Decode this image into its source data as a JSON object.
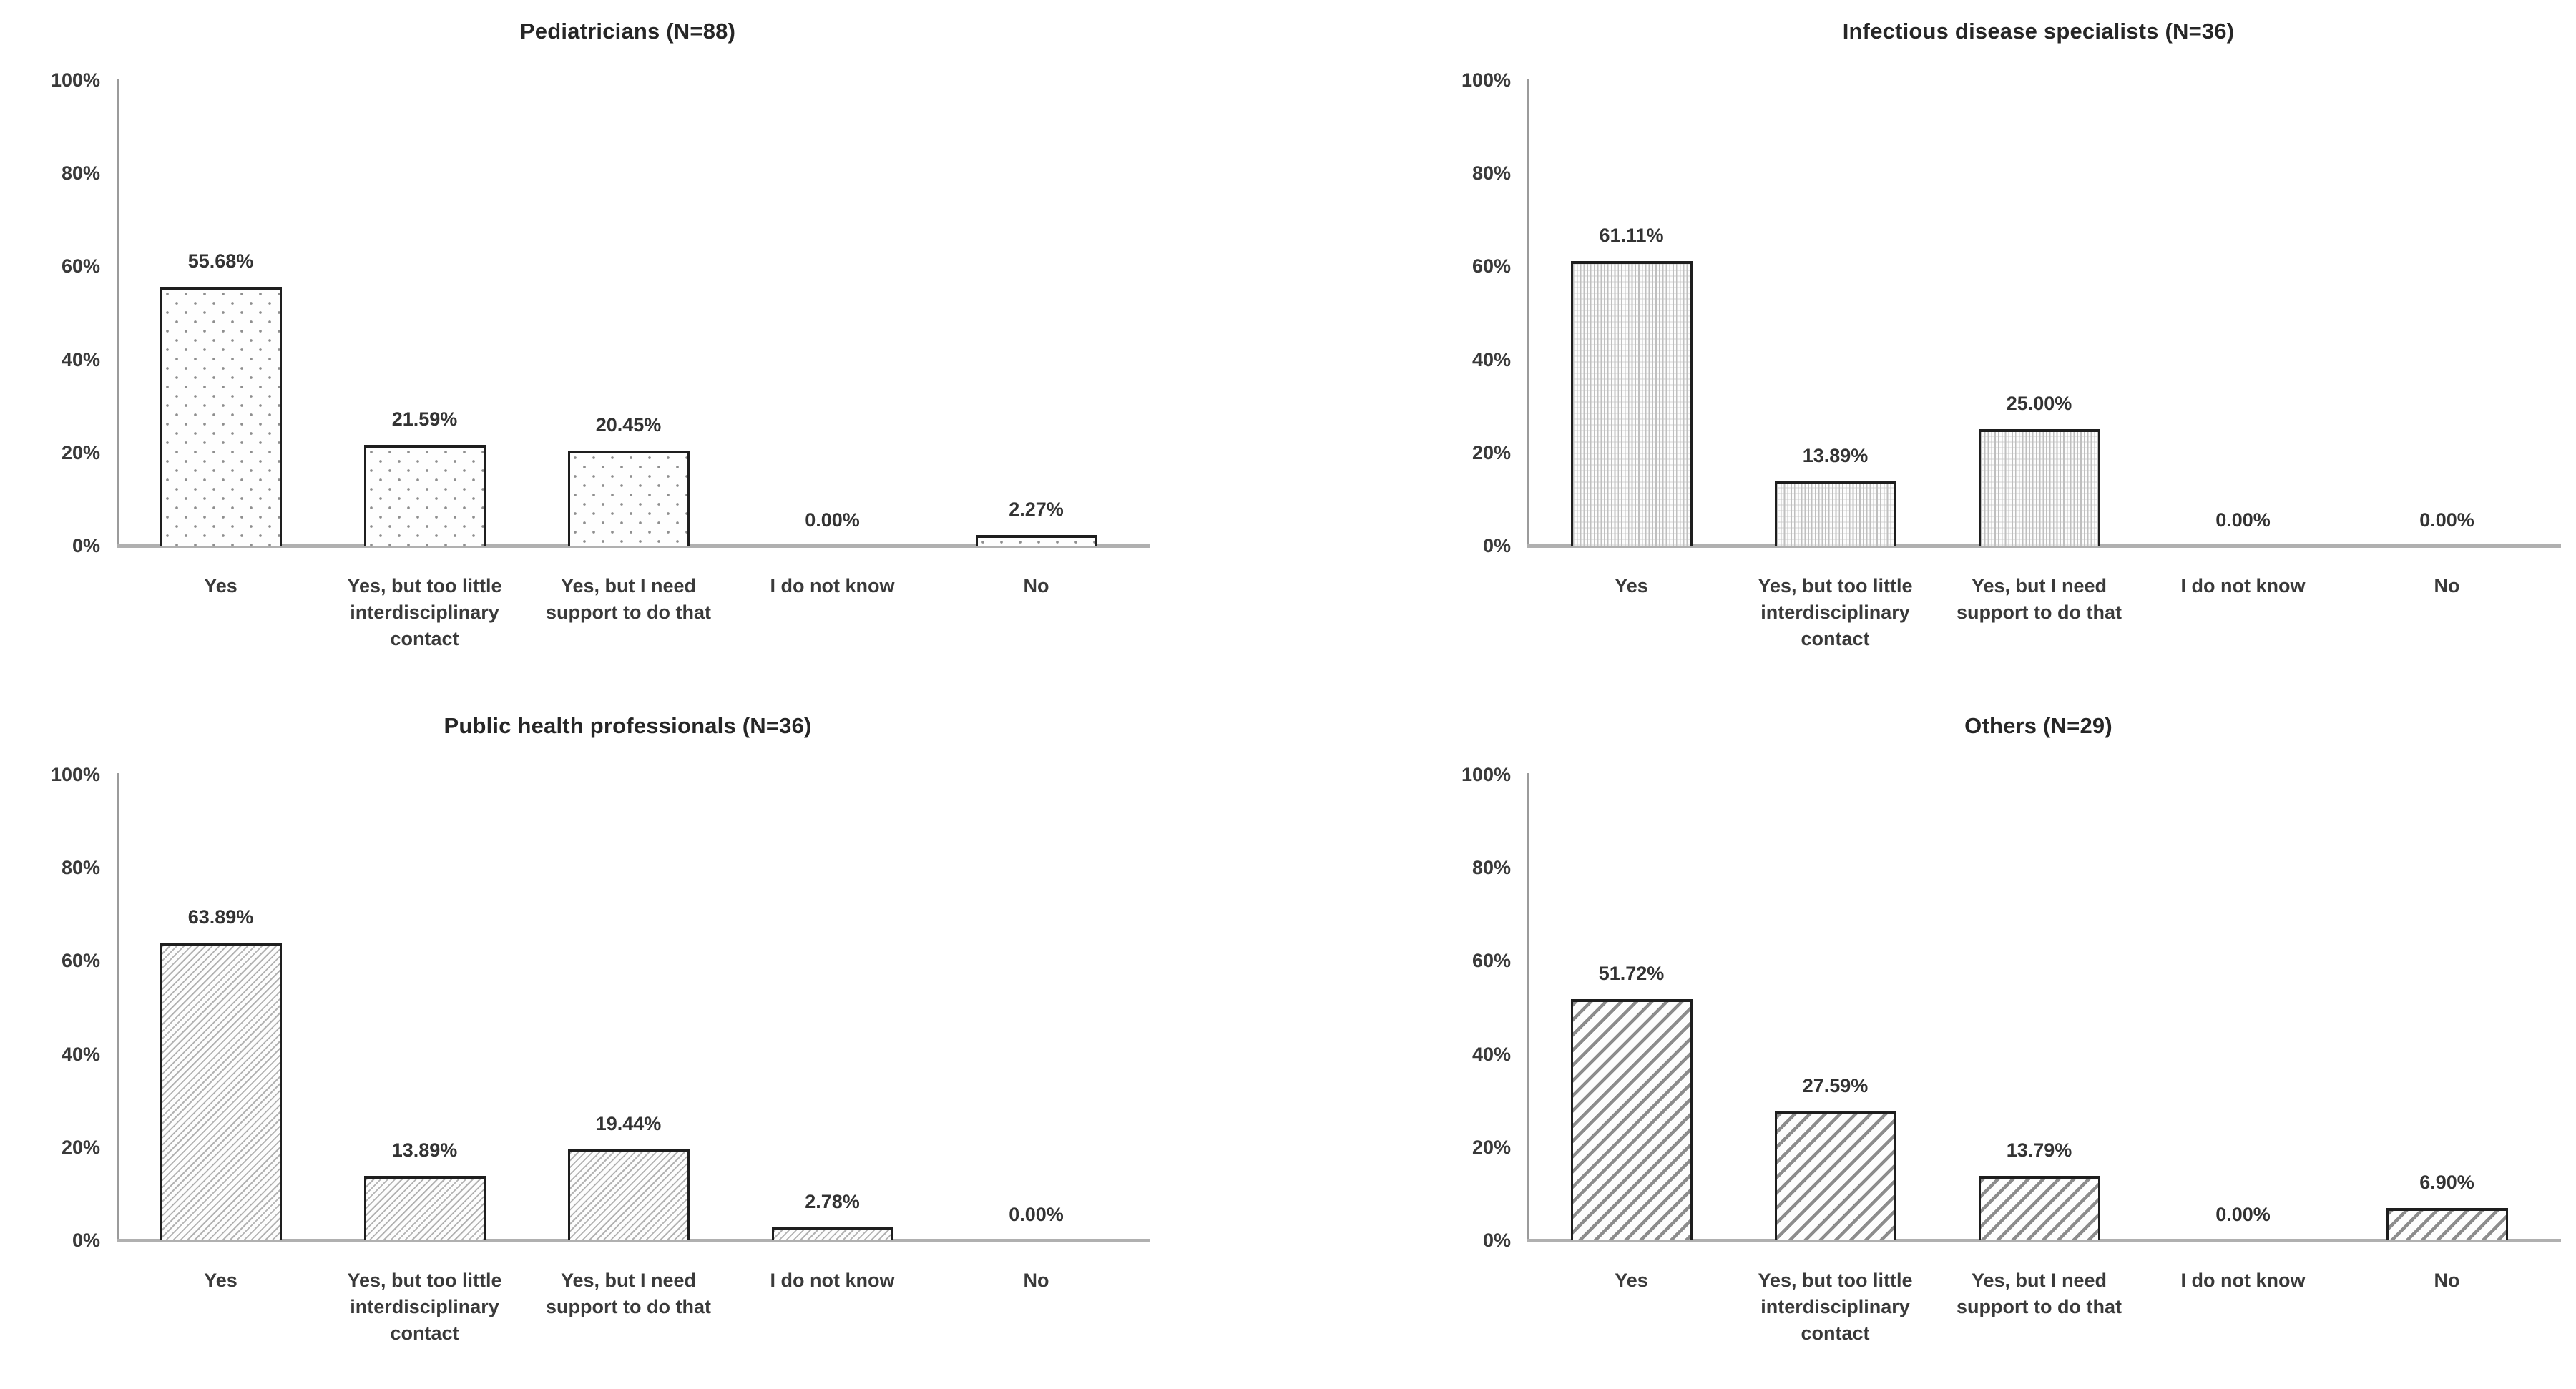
{
  "figure": {
    "background": "#ffffff",
    "description": "Four bar charts of survey responses by professional group"
  },
  "palette": {
    "bar_border": "#1e1e1e",
    "y_axis_line": "#9b9b9b",
    "x_axis_line": "#b0b0b0",
    "title_text": "#262626",
    "label_text": "#3a3a3a",
    "value_text": "#333333",
    "dot_pattern_gray": "#8f8f8f",
    "vline_pattern_gray": "#bfbfbf",
    "fine_hatch_gray": "#b2b2b2",
    "bold_hatch_gray": "#8c8c8c"
  },
  "chart_data": [
    {
      "type": "bar",
      "title": "Pediatricians (N=88)",
      "categories": [
        "Yes",
        "Yes, but too little interdisciplinary contact",
        "Yes, but I need support to do that",
        "I do not know",
        "No"
      ],
      "values": [
        55.68,
        21.59,
        20.45,
        0.0,
        2.27
      ],
      "value_labels": [
        "55.68%",
        "21.59%",
        "20.45%",
        "0.00%",
        "2.27%"
      ],
      "y_ticks": [
        "100%",
        "80%",
        "60%",
        "40%",
        "20%",
        "0%"
      ],
      "ylim": [
        0,
        100
      ],
      "xlabel": "",
      "ylabel": "",
      "grid": false,
      "legend": null,
      "pattern": "dots",
      "pattern_description": "white fill with sparse gray polka dots, black outline"
    },
    {
      "type": "bar",
      "title": "Infectious disease specialists (N=36)",
      "categories": [
        "Yes",
        "Yes, but too little interdisciplinary contact",
        "Yes, but I need support to do that",
        "I do not know",
        "No"
      ],
      "values": [
        61.11,
        13.89,
        25.0,
        0.0,
        0.0
      ],
      "value_labels": [
        "61.11%",
        "13.89%",
        "25.00%",
        "0.00%",
        "0.00%"
      ],
      "y_ticks": [
        "100%",
        "80%",
        "60%",
        "40%",
        "20%",
        "0%"
      ],
      "ylim": [
        0,
        100
      ],
      "xlabel": "",
      "ylabel": "",
      "grid": false,
      "legend": null,
      "pattern": "vertical-lines",
      "pattern_description": "dense fine vertical gray lines, black outline"
    },
    {
      "type": "bar",
      "title": "Public health professionals (N=36)",
      "categories": [
        "Yes",
        "Yes, but too little interdisciplinary contact",
        "Yes, but I need support to do that",
        "I do not know",
        "No"
      ],
      "values": [
        63.89,
        13.89,
        19.44,
        2.78,
        0.0
      ],
      "value_labels": [
        "63.89%",
        "13.89%",
        "19.44%",
        "2.78%",
        "0.00%"
      ],
      "y_ticks": [
        "100%",
        "80%",
        "60%",
        "40%",
        "20%",
        "0%"
      ],
      "ylim": [
        0,
        100
      ],
      "xlabel": "",
      "ylabel": "",
      "grid": false,
      "legend": null,
      "pattern": "diagonal-fine",
      "pattern_description": "thin light-gray upward diagonal hatching, black outline"
    },
    {
      "type": "bar",
      "title": "Others (N=29)",
      "categories": [
        "Yes",
        "Yes, but too little interdisciplinary contact",
        "Yes, but I need support to do that",
        "I do not know",
        "No"
      ],
      "values": [
        51.72,
        27.59,
        13.79,
        0.0,
        6.9
      ],
      "value_labels": [
        "51.72%",
        "27.59%",
        "13.79%",
        "0.00%",
        "6.90%"
      ],
      "y_ticks": [
        "100%",
        "80%",
        "60%",
        "40%",
        "20%",
        "0%"
      ],
      "ylim": [
        0,
        100
      ],
      "xlabel": "",
      "ylabel": "",
      "grid": false,
      "legend": null,
      "pattern": "diagonal-bold",
      "pattern_description": "wide dark-gray upward diagonal hatching, black outline"
    }
  ]
}
